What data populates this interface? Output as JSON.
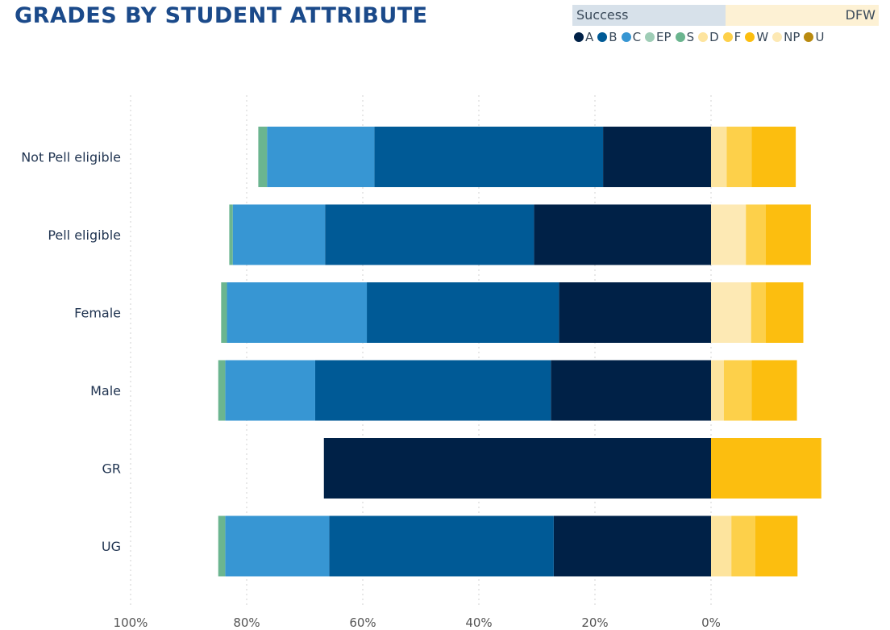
{
  "title": "GRADES BY STUDENT ATTRIBUTE",
  "legend": {
    "success_label": "Success",
    "dfw_label": "DFW",
    "items": [
      {
        "name": "A",
        "color": "#002147"
      },
      {
        "name": "B",
        "color": "#005a96"
      },
      {
        "name": "C",
        "color": "#3796d3"
      },
      {
        "name": "EP",
        "color": "#9fcdb6"
      },
      {
        "name": "S",
        "color": "#6bb58f"
      },
      {
        "name": "D",
        "color": "#fde49e"
      },
      {
        "name": "F",
        "color": "#fdd04a"
      },
      {
        "name": "W",
        "color": "#fcbe0f"
      },
      {
        "name": "NP",
        "color": "#fde9b4"
      },
      {
        "name": "U",
        "color": "#b98a10"
      }
    ]
  },
  "chart_data": {
    "type": "bar",
    "orientation": "horizontal",
    "stacking": "diverging",
    "categories": [
      "Not Pell eligible",
      "Pell eligible",
      "Female",
      "Male",
      "GR",
      "UG"
    ],
    "success_series": [
      {
        "name": "A",
        "values": [
          18.6,
          30.5,
          26.2,
          27.6,
          66.7,
          27.1
        ]
      },
      {
        "name": "B",
        "values": [
          39.4,
          36.0,
          33.1,
          40.6,
          0,
          38.7
        ]
      },
      {
        "name": "C",
        "values": [
          18.5,
          15.9,
          24.1,
          15.5,
          0,
          17.9
        ]
      },
      {
        "name": "EP",
        "values": [
          0,
          0,
          0,
          0,
          0,
          0
        ]
      },
      {
        "name": "S",
        "values": [
          1.5,
          0.6,
          1.0,
          1.2,
          0,
          1.2
        ]
      }
    ],
    "dfw_series": [
      {
        "name": "NP",
        "values": [
          0,
          6.0,
          6.9,
          0,
          0,
          0
        ]
      },
      {
        "name": "D",
        "values": [
          2.7,
          0,
          0,
          2.2,
          0,
          3.5
        ]
      },
      {
        "name": "F",
        "values": [
          4.3,
          3.4,
          2.5,
          4.8,
          0,
          4.1
        ]
      },
      {
        "name": "W",
        "values": [
          7.6,
          7.8,
          6.5,
          7.8,
          19.0,
          7.3
        ]
      }
    ],
    "x_ticks": [
      "100%",
      "80%",
      "60%",
      "40%",
      "20%",
      "0%"
    ],
    "x_tick_values": [
      100,
      80,
      60,
      40,
      20,
      0
    ],
    "xlim_success": [
      0,
      100
    ],
    "grid": "vertical dotted"
  }
}
